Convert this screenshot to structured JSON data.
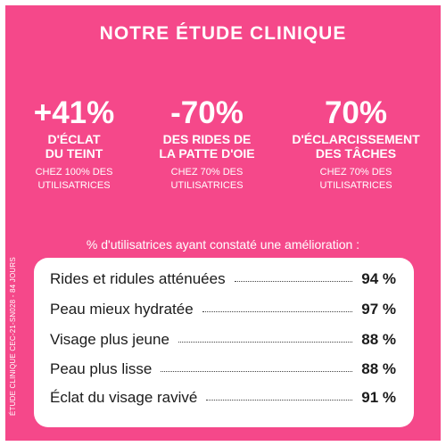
{
  "title": "NOTRE ÉTUDE CLINIQUE",
  "stats": [
    {
      "percent": "+41%",
      "description": "D'ÉCLAT\nDU TEINT",
      "note": "CHEZ 100% DES\nUTILISATRICES"
    },
    {
      "percent": "-70%",
      "description": "DES RIDES DE\nLA PATTE D'OIE",
      "note": "CHEZ 70% DES\nUTILISATRICES"
    },
    {
      "percent": "70%",
      "description": "D'ÉCLARCISSEMENT\nDES TÂCHES",
      "note": "CHEZ 70% DES\nUTILISATRICES"
    }
  ],
  "side_note": "ÉTUDE CLINIQUE CEC-21-SN028 - 84 JOURS",
  "survey": {
    "intro": "% d'utilisatrices ayant constaté une amélioration :",
    "results": [
      {
        "label": "Rides et ridules atténuées",
        "value": "94 %"
      },
      {
        "label": "Peau mieux hydratée",
        "value": "97 %"
      },
      {
        "label": "Visage plus jeune",
        "value": "88 %"
      },
      {
        "label": "Peau plus lisse",
        "value": "88 %"
      },
      {
        "label": "Éclat du visage ravivé",
        "value": "91 %"
      }
    ]
  },
  "colors": {
    "background": "#f5488a",
    "text_light": "#ffffff",
    "box": "#ffffff",
    "text_dark": "#1b1b1b"
  }
}
